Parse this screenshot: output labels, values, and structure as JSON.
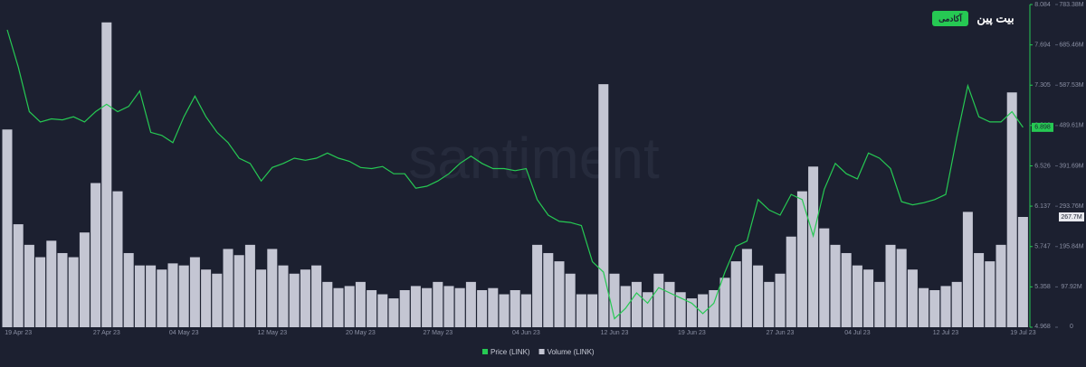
{
  "chart_data": {
    "type": "bar-line",
    "watermark": "santiment",
    "logo": [
      "آکادمی",
      "بیت پین"
    ],
    "categories": [
      null,
      "19 Apr 23",
      null,
      null,
      null,
      null,
      null,
      null,
      null,
      "27 Apr 23",
      null,
      null,
      null,
      null,
      null,
      null,
      "04 May 23",
      null,
      null,
      null,
      null,
      null,
      null,
      null,
      "12 May 23",
      null,
      null,
      null,
      null,
      null,
      null,
      null,
      "20 May 23",
      null,
      null,
      null,
      null,
      null,
      null,
      "27 May 23",
      null,
      null,
      null,
      null,
      null,
      null,
      null,
      "04 Jun 23",
      null,
      null,
      null,
      null,
      null,
      null,
      null,
      "12 Jun 23",
      null,
      null,
      null,
      null,
      null,
      null,
      "19 Jun 23",
      null,
      null,
      null,
      null,
      null,
      null,
      null,
      "27 Jun 23",
      null,
      null,
      null,
      null,
      null,
      null,
      "04 Jul 23",
      null,
      null,
      null,
      null,
      null,
      null,
      null,
      "12 Jul 23",
      null,
      null,
      null,
      null,
      null,
      null,
      "19 Jul 23"
    ],
    "series": [
      {
        "name": "Volume (LINK)",
        "color": "#c4c6d3",
        "axis": "y2",
        "values": [
          480,
          250,
          200,
          170,
          210,
          180,
          170,
          230,
          350,
          740,
          330,
          180,
          150,
          150,
          140,
          155,
          150,
          170,
          140,
          130,
          190,
          175,
          200,
          140,
          190,
          150,
          130,
          140,
          150,
          110,
          95,
          100,
          110,
          90,
          80,
          70,
          90,
          100,
          95,
          110,
          100,
          95,
          110,
          90,
          95,
          80,
          90,
          80,
          200,
          180,
          160,
          130,
          80,
          80,
          590,
          130,
          100,
          110,
          85,
          130,
          110,
          85,
          70,
          80,
          90,
          120,
          160,
          190,
          150,
          110,
          130,
          220,
          330,
          390,
          240,
          200,
          180,
          150,
          140,
          110,
          200,
          190,
          140,
          95,
          90,
          100,
          110,
          280,
          180,
          160,
          200,
          570,
          267.7
        ]
      },
      {
        "name": "Price (LINK)",
        "color": "#26c953",
        "values": [
          7.84,
          7.48,
          7.05,
          6.95,
          6.98,
          6.97,
          7.0,
          6.95,
          7.05,
          7.12,
          7.05,
          7.1,
          7.25,
          6.85,
          6.82,
          6.75,
          7.0,
          7.2,
          7.0,
          6.85,
          6.75,
          6.6,
          6.55,
          6.38,
          6.51,
          6.55,
          6.6,
          6.58,
          6.6,
          6.65,
          6.6,
          6.57,
          6.51,
          6.5,
          6.52,
          6.45,
          6.45,
          6.31,
          6.33,
          6.38,
          6.45,
          6.55,
          6.62,
          6.55,
          6.5,
          6.5,
          6.48,
          6.5,
          6.2,
          6.05,
          5.99,
          5.98,
          5.95,
          5.6,
          5.5,
          5.05,
          5.15,
          5.3,
          5.2,
          5.35,
          5.3,
          5.25,
          5.2,
          5.1,
          5.2,
          5.5,
          5.75,
          5.8,
          6.2,
          6.1,
          6.05,
          6.25,
          6.2,
          5.85,
          6.3,
          6.55,
          6.45,
          6.4,
          6.65,
          6.6,
          6.5,
          6.18,
          6.15,
          6.17,
          6.2,
          6.25,
          6.8,
          7.3,
          7.0,
          6.95,
          6.95,
          7.05,
          6.898
        ]
      }
    ],
    "ylim": [
      4.968,
      8.084
    ],
    "yticks": [
      4.968,
      5.358,
      5.747,
      6.137,
      6.526,
      6.916,
      7.305,
      7.694,
      8.084
    ],
    "y2lim": [
      0,
      783.38
    ],
    "y2ticks": [
      0,
      {
        "value": 97.92,
        "label": "97.92M"
      },
      {
        "value": 195.84,
        "label": "195.84M"
      },
      {
        "value": 293.76,
        "label": "293.76M"
      },
      {
        "value": 391.69,
        "label": "391.69M"
      },
      {
        "value": 489.61,
        "label": "489.61M"
      },
      {
        "value": 587.53,
        "label": "587.53M"
      },
      {
        "value": 685.46,
        "label": "685.46M"
      },
      {
        "value": 783.38,
        "label": "783.38M"
      }
    ],
    "last_price": 6.898,
    "last_volume": {
      "value": 267.7,
      "label": "267.7M"
    }
  }
}
